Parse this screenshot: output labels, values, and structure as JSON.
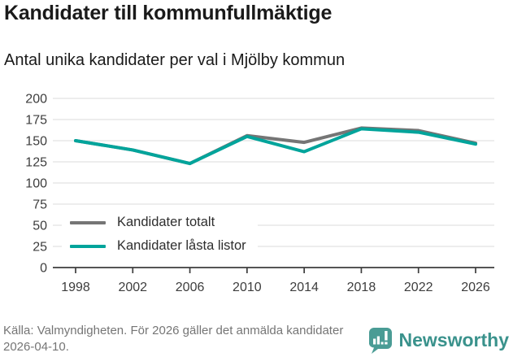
{
  "header": {
    "title": "Kandidater till kommunfullmäktige",
    "subtitle": "Antal unika kandidater per val i Mjölby kommun"
  },
  "chart_data": {
    "type": "line",
    "x": [
      "1998",
      "2002",
      "2006",
      "2010",
      "2014",
      "2018",
      "2022",
      "2026"
    ],
    "series": [
      {
        "name": "Kandidater totalt",
        "color": "#757575",
        "values": [
          150,
          139,
          123,
          156,
          148,
          165,
          162,
          147
        ]
      },
      {
        "name": "Kandidater låsta listor",
        "color": "#00a49b",
        "values": [
          150,
          139,
          123,
          155,
          137,
          164,
          160,
          146
        ]
      }
    ],
    "ylim": [
      0,
      200
    ],
    "ytick_step": 25,
    "grid": "horizontal",
    "gridline_color": "#e2e2e2",
    "axis_color": "#3d3d3d",
    "legend_position": "inside-left"
  },
  "footer": {
    "source": "Källa: Valmyndigheten. För 2026 gäller det anmälda kandidater 2026-04-10.",
    "brand": "Newsworthy",
    "brand_color": "#3a928c",
    "brand_icon_color": "#4a9c95"
  }
}
